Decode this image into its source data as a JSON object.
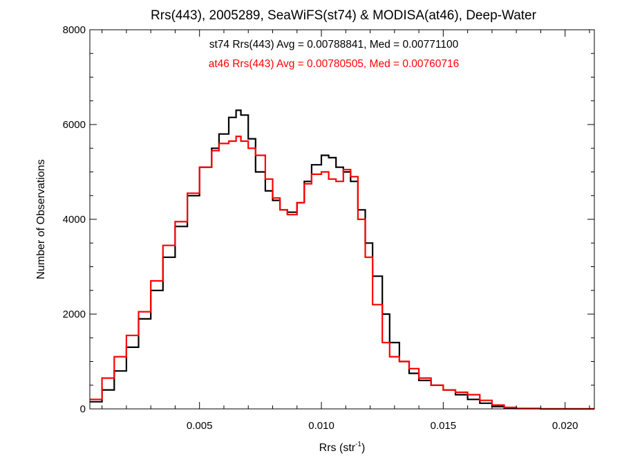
{
  "chart_data": {
    "type": "line",
    "title": "Rrs(443), 2005289, SeaWiFS(st74) & MODISA(at46), Deep-Water",
    "xlabel": {
      "base": "Rrs (str",
      "sup": "-1",
      "close": ")"
    },
    "ylabel": "Number of Observations",
    "xlim": [
      0.0005,
      0.0212
    ],
    "ylim": [
      0,
      8000
    ],
    "xticks": [
      0.005,
      0.01,
      0.015,
      0.02
    ],
    "xtick_labels": [
      "0.005",
      "0.010",
      "0.015",
      "0.020"
    ],
    "yticks": [
      0,
      2000,
      4000,
      6000,
      8000
    ],
    "ytick_labels": [
      "0",
      "2000",
      "4000",
      "6000",
      "8000"
    ],
    "grid": false,
    "step": true,
    "annotations": [
      {
        "text": "st74 Rrs(443) Avg = 0.00788841, Med = 0.00771100",
        "color": "#000000"
      },
      {
        "text": "at46 Rrs(443) Avg = 0.00780505, Med = 0.00760716",
        "color": "#ff0000"
      }
    ],
    "series": [
      {
        "color": "#000000",
        "x": [
          0.0005,
          0.001,
          0.0015,
          0.002,
          0.0025,
          0.003,
          0.0035,
          0.004,
          0.0045,
          0.005,
          0.0055,
          0.0058,
          0.0062,
          0.0065,
          0.0067,
          0.007,
          0.0073,
          0.0077,
          0.008,
          0.0083,
          0.0086,
          0.009,
          0.0093,
          0.0096,
          0.01,
          0.0103,
          0.0106,
          0.0109,
          0.0112,
          0.0115,
          0.0118,
          0.0121,
          0.0125,
          0.0128,
          0.0132,
          0.0136,
          0.014,
          0.0145,
          0.015,
          0.0155,
          0.016,
          0.0165,
          0.017,
          0.0175,
          0.018,
          0.019,
          0.02,
          0.0212
        ],
        "y": [
          150,
          400,
          800,
          1300,
          1900,
          2500,
          3200,
          3850,
          4500,
          5100,
          5500,
          5800,
          6150,
          6300,
          6200,
          5700,
          5000,
          4600,
          4400,
          4200,
          4150,
          4350,
          4800,
          5150,
          5350,
          5300,
          5100,
          5000,
          4800,
          4200,
          3500,
          2800,
          2000,
          1400,
          1000,
          750,
          600,
          500,
          400,
          300,
          200,
          120,
          50,
          15,
          8,
          0,
          0,
          0
        ]
      },
      {
        "color": "#ff0000",
        "x": [
          0.0005,
          0.001,
          0.0015,
          0.002,
          0.0025,
          0.003,
          0.0035,
          0.004,
          0.0045,
          0.005,
          0.0055,
          0.0058,
          0.0062,
          0.0065,
          0.0067,
          0.007,
          0.0073,
          0.0077,
          0.008,
          0.0083,
          0.0086,
          0.009,
          0.0093,
          0.0096,
          0.01,
          0.0103,
          0.0106,
          0.0109,
          0.0112,
          0.0115,
          0.0118,
          0.0121,
          0.0125,
          0.0128,
          0.0132,
          0.0136,
          0.014,
          0.0145,
          0.015,
          0.0155,
          0.016,
          0.0165,
          0.017,
          0.0175,
          0.018,
          0.019,
          0.02,
          0.0212
        ],
        "y": [
          200,
          650,
          1100,
          1550,
          2050,
          2700,
          3450,
          3950,
          4550,
          5100,
          5450,
          5600,
          5650,
          5750,
          5650,
          5500,
          5350,
          4850,
          4450,
          4200,
          4100,
          4350,
          4750,
          4950,
          5000,
          4850,
          4800,
          5050,
          4900,
          4000,
          3200,
          2200,
          1400,
          1100,
          1000,
          850,
          650,
          500,
          400,
          350,
          300,
          180,
          80,
          30,
          10,
          0,
          0,
          0
        ]
      }
    ]
  }
}
